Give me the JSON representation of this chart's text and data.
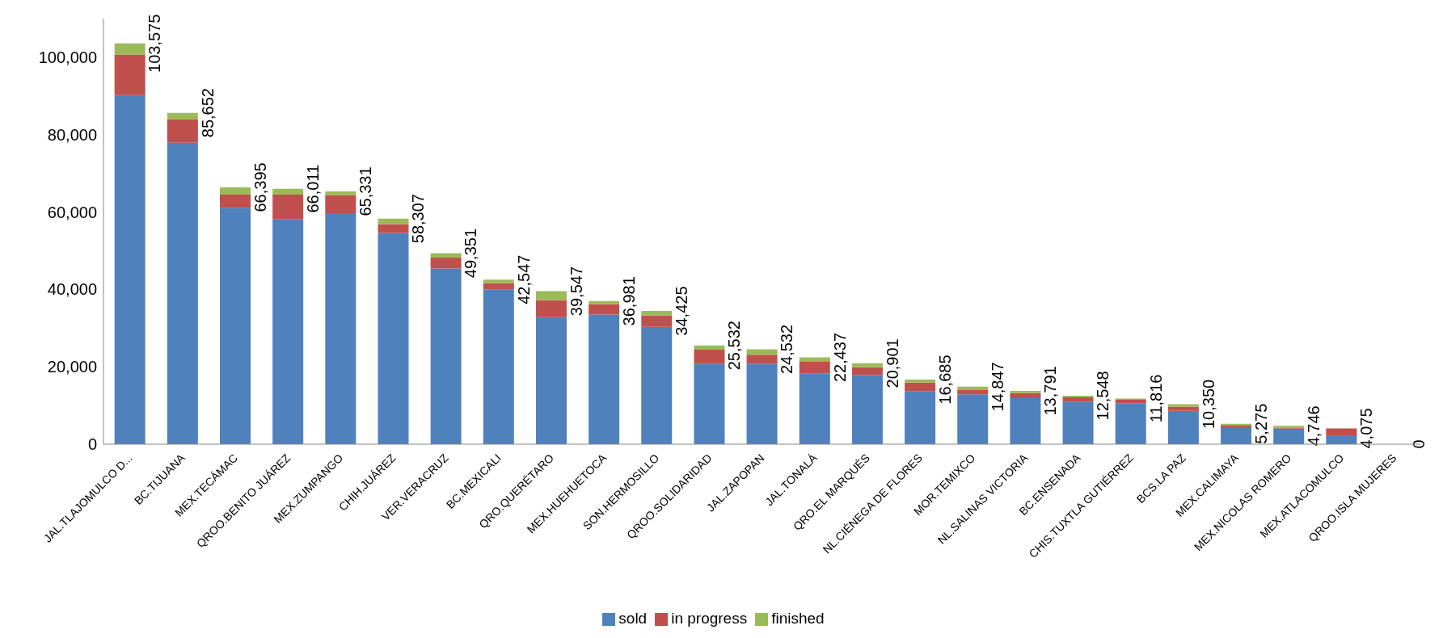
{
  "chart_data": {
    "type": "bar",
    "stacked": true,
    "categories": [
      "JAL.TLAJOMULCO D...",
      "BC.TIJUANA",
      "MEX.TECÁMAC",
      "QROO.BENITO JUÁREZ",
      "MEX.ZUMPANGO",
      "CHIH.JUÁREZ",
      "VER.VERACRUZ",
      "BC.MEXICALI",
      "QRO.QUERÉTARO",
      "MEX.HUEHUETOCA",
      "SON.HERMOSILLO",
      "QROO.SOLIDARIDAD",
      "JAL.ZAPOPAN",
      "JAL.TONALÁ",
      "QRO.EL MARQUÉS",
      "NL.CIÉNEGA DE FLORES",
      "MOR.TEMIXCO",
      "NL.SALINAS VICTORIA",
      "BC.ENSENADA",
      "CHIS.TUXTLA GUTIÉRREZ",
      "BCS.LA PAZ",
      "MEX.CALIMAYA",
      "MEX.NICOLAS ROMERO",
      "MEX.ATLACOMULCO",
      "QROO.ISLA MUJERES"
    ],
    "series": [
      {
        "name": "sold",
        "color": "#4f81bd",
        "values": [
          90200,
          77900,
          61100,
          58200,
          59700,
          54600,
          45400,
          40000,
          32800,
          33500,
          30300,
          20700,
          20800,
          18300,
          17900,
          13600,
          12900,
          11900,
          11000,
          10600,
          8600,
          4400,
          4000,
          2300,
          0
        ]
      },
      {
        "name": "in progress",
        "color": "#c0504d",
        "values": [
          10500,
          6100,
          3400,
          6300,
          4700,
          2300,
          2800,
          1600,
          4400,
          2700,
          3000,
          3700,
          2300,
          3000,
          2000,
          2300,
          1100,
          1300,
          1100,
          900,
          1100,
          400,
          300,
          1775,
          0
        ]
      },
      {
        "name": "finished",
        "color": "#9bbb59",
        "values": [
          2875,
          1652,
          1895,
          1511,
          931,
          1407,
          1151,
          947,
          2347,
          781,
          1125,
          1132,
          1432,
          1137,
          1001,
          785,
          847,
          591,
          448,
          316,
          650,
          475,
          446,
          null,
          0
        ]
      }
    ],
    "totals": [
      "103,575",
      "85,652",
      "66,395",
      "66,011",
      "65,331",
      "58,307",
      "49,351",
      "42,547",
      "39,547",
      "36,981",
      "34,425",
      "25,532",
      "24,532",
      "22,437",
      "20,901",
      "16,685",
      "14,847",
      "13,791",
      "12,548",
      "11,816",
      "10,350",
      "5,275",
      "4,746",
      "4,075",
      "0"
    ],
    "ylim": [
      0,
      110000
    ],
    "yticks": [
      0,
      {
        "value": 20000,
        "label": "20,000"
      },
      {
        "value": 40000,
        "label": "40,000"
      },
      {
        "value": 60000,
        "label": "60,000"
      },
      {
        "value": 80000,
        "label": "80,000"
      },
      {
        "value": 100000,
        "label": "100,000"
      }
    ],
    "grid": false,
    "legend": "bottom"
  }
}
